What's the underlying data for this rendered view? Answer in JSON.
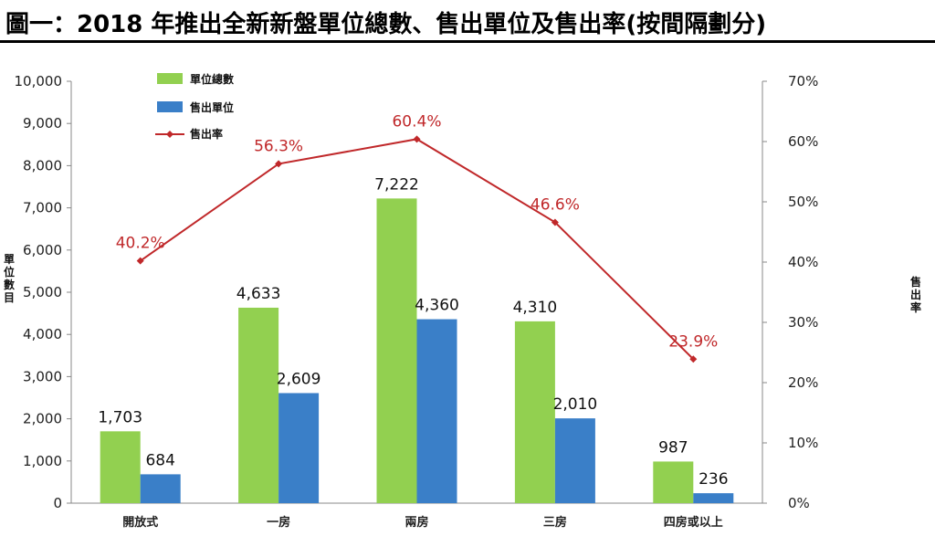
{
  "page_title": "圖一：2018 年推出全新新盤單位總數、售出單位及售出率(按間隔劃分)",
  "chart_data": {
    "type": "bar",
    "categories": [
      "開放式",
      "一房",
      "兩房",
      "三房",
      "四房或以上"
    ],
    "series": [
      {
        "name": "單位總數",
        "kind": "bar",
        "color": "#92d050",
        "values": [
          1703,
          4633,
          7222,
          4310,
          987
        ],
        "labels": [
          "1,703",
          "4,633",
          "7,222",
          "4,310",
          "987"
        ]
      },
      {
        "name": "售出單位",
        "kind": "bar",
        "color": "#3a7fc8",
        "values": [
          684,
          2609,
          4360,
          2010,
          236
        ],
        "labels": [
          "684",
          "2,609",
          "4,360",
          "2,010",
          "236"
        ]
      },
      {
        "name": "售出率",
        "kind": "line",
        "axis": "right",
        "color": "#c0282a",
        "values": [
          40.2,
          56.3,
          60.4,
          46.6,
          23.9
        ],
        "labels": [
          "40.2%",
          "56.3%",
          "60.4%",
          "46.6%",
          "23.9%"
        ]
      }
    ],
    "ylabel": "單位數目",
    "y2label": "售出率",
    "ylim": [
      0,
      10000
    ],
    "y2lim": [
      0,
      70
    ],
    "yticks": [
      "0",
      "1,000",
      "2,000",
      "3,000",
      "4,000",
      "5,000",
      "6,000",
      "7,000",
      "8,000",
      "9,000",
      "10,000"
    ],
    "y2ticks": [
      "0%",
      "10%",
      "20%",
      "30%",
      "40%",
      "50%",
      "60%",
      "70%"
    ],
    "legend_position": "top-left"
  }
}
